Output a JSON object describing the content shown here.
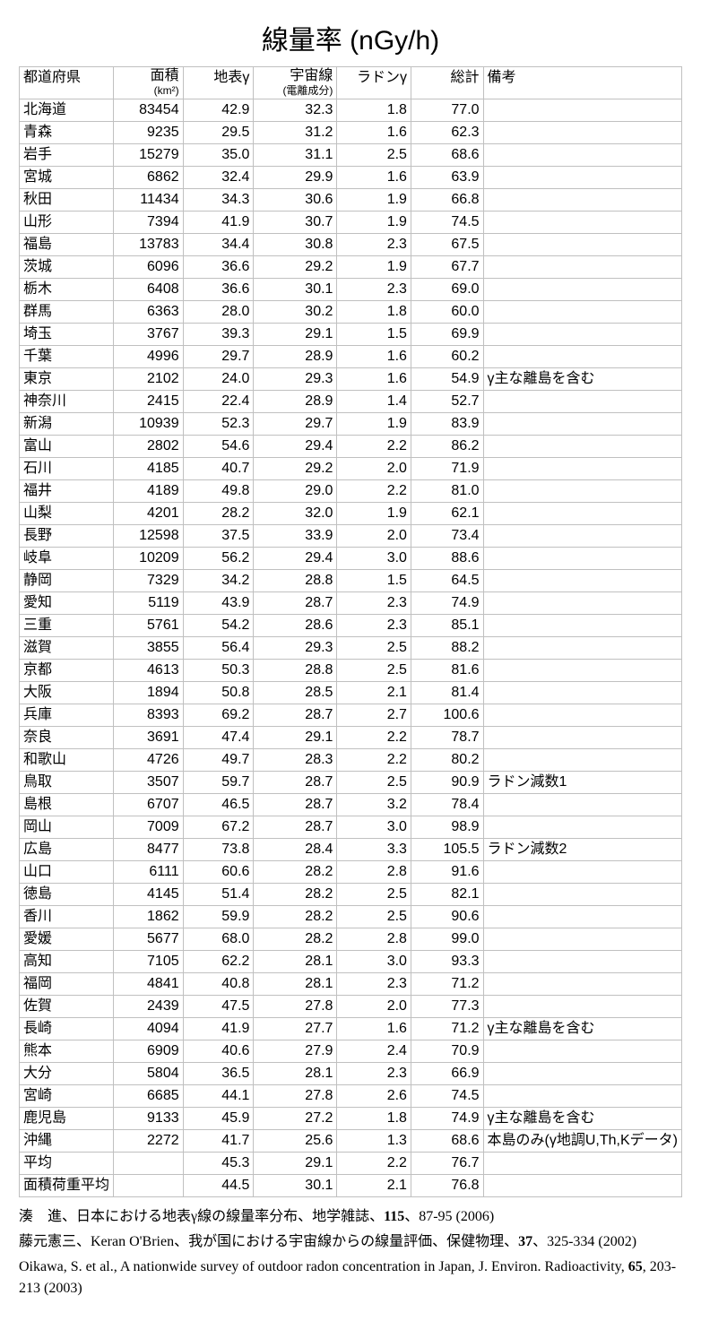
{
  "title": "線量率 (nGy/h)",
  "table": {
    "columns": [
      {
        "key": "pref",
        "label": "都道府県",
        "sublabel": "",
        "class": "col-pref"
      },
      {
        "key": "area",
        "label": "面積",
        "sublabel": "(km²)",
        "class": "col-area"
      },
      {
        "key": "gamma",
        "label": "地表γ",
        "sublabel": "",
        "class": "col-gamma"
      },
      {
        "key": "cosmic",
        "label": "宇宙線",
        "sublabel": "(電離成分)",
        "class": "col-cosmic"
      },
      {
        "key": "radon",
        "label": "ラドンγ",
        "sublabel": "",
        "class": "col-radon"
      },
      {
        "key": "total",
        "label": "総計",
        "sublabel": "",
        "class": "col-total"
      },
      {
        "key": "note",
        "label": "備考",
        "sublabel": "",
        "class": "col-note"
      }
    ],
    "rows": [
      {
        "pref": "北海道",
        "area": "83454",
        "gamma": "42.9",
        "cosmic": "32.3",
        "radon": "1.8",
        "total": "77.0",
        "note": ""
      },
      {
        "pref": "青森",
        "area": "9235",
        "gamma": "29.5",
        "cosmic": "31.2",
        "radon": "1.6",
        "total": "62.3",
        "note": ""
      },
      {
        "pref": "岩手",
        "area": "15279",
        "gamma": "35.0",
        "cosmic": "31.1",
        "radon": "2.5",
        "total": "68.6",
        "note": ""
      },
      {
        "pref": "宮城",
        "area": "6862",
        "gamma": "32.4",
        "cosmic": "29.9",
        "radon": "1.6",
        "total": "63.9",
        "note": ""
      },
      {
        "pref": "秋田",
        "area": "11434",
        "gamma": "34.3",
        "cosmic": "30.6",
        "radon": "1.9",
        "total": "66.8",
        "note": ""
      },
      {
        "pref": "山形",
        "area": "7394",
        "gamma": "41.9",
        "cosmic": "30.7",
        "radon": "1.9",
        "total": "74.5",
        "note": ""
      },
      {
        "pref": "福島",
        "area": "13783",
        "gamma": "34.4",
        "cosmic": "30.8",
        "radon": "2.3",
        "total": "67.5",
        "note": ""
      },
      {
        "pref": "茨城",
        "area": "6096",
        "gamma": "36.6",
        "cosmic": "29.2",
        "radon": "1.9",
        "total": "67.7",
        "note": ""
      },
      {
        "pref": "栃木",
        "area": "6408",
        "gamma": "36.6",
        "cosmic": "30.1",
        "radon": "2.3",
        "total": "69.0",
        "note": ""
      },
      {
        "pref": "群馬",
        "area": "6363",
        "gamma": "28.0",
        "cosmic": "30.2",
        "radon": "1.8",
        "total": "60.0",
        "note": ""
      },
      {
        "pref": "埼玉",
        "area": "3767",
        "gamma": "39.3",
        "cosmic": "29.1",
        "radon": "1.5",
        "total": "69.9",
        "note": ""
      },
      {
        "pref": "千葉",
        "area": "4996",
        "gamma": "29.7",
        "cosmic": "28.9",
        "radon": "1.6",
        "total": "60.2",
        "note": ""
      },
      {
        "pref": "東京",
        "area": "2102",
        "gamma": "24.0",
        "cosmic": "29.3",
        "radon": "1.6",
        "total": "54.9",
        "note": "γ主な離島を含む"
      },
      {
        "pref": "神奈川",
        "area": "2415",
        "gamma": "22.4",
        "cosmic": "28.9",
        "radon": "1.4",
        "total": "52.7",
        "note": ""
      },
      {
        "pref": "新潟",
        "area": "10939",
        "gamma": "52.3",
        "cosmic": "29.7",
        "radon": "1.9",
        "total": "83.9",
        "note": ""
      },
      {
        "pref": "富山",
        "area": "2802",
        "gamma": "54.6",
        "cosmic": "29.4",
        "radon": "2.2",
        "total": "86.2",
        "note": ""
      },
      {
        "pref": "石川",
        "area": "4185",
        "gamma": "40.7",
        "cosmic": "29.2",
        "radon": "2.0",
        "total": "71.9",
        "note": ""
      },
      {
        "pref": "福井",
        "area": "4189",
        "gamma": "49.8",
        "cosmic": "29.0",
        "radon": "2.2",
        "total": "81.0",
        "note": ""
      },
      {
        "pref": "山梨",
        "area": "4201",
        "gamma": "28.2",
        "cosmic": "32.0",
        "radon": "1.9",
        "total": "62.1",
        "note": ""
      },
      {
        "pref": "長野",
        "area": "12598",
        "gamma": "37.5",
        "cosmic": "33.9",
        "radon": "2.0",
        "total": "73.4",
        "note": ""
      },
      {
        "pref": "岐阜",
        "area": "10209",
        "gamma": "56.2",
        "cosmic": "29.4",
        "radon": "3.0",
        "total": "88.6",
        "note": ""
      },
      {
        "pref": "静岡",
        "area": "7329",
        "gamma": "34.2",
        "cosmic": "28.8",
        "radon": "1.5",
        "total": "64.5",
        "note": ""
      },
      {
        "pref": "愛知",
        "area": "5119",
        "gamma": "43.9",
        "cosmic": "28.7",
        "radon": "2.3",
        "total": "74.9",
        "note": ""
      },
      {
        "pref": "三重",
        "area": "5761",
        "gamma": "54.2",
        "cosmic": "28.6",
        "radon": "2.3",
        "total": "85.1",
        "note": ""
      },
      {
        "pref": "滋賀",
        "area": "3855",
        "gamma": "56.4",
        "cosmic": "29.3",
        "radon": "2.5",
        "total": "88.2",
        "note": ""
      },
      {
        "pref": "京都",
        "area": "4613",
        "gamma": "50.3",
        "cosmic": "28.8",
        "radon": "2.5",
        "total": "81.6",
        "note": ""
      },
      {
        "pref": "大阪",
        "area": "1894",
        "gamma": "50.8",
        "cosmic": "28.5",
        "radon": "2.1",
        "total": "81.4",
        "note": ""
      },
      {
        "pref": "兵庫",
        "area": "8393",
        "gamma": "69.2",
        "cosmic": "28.7",
        "radon": "2.7",
        "total": "100.6",
        "note": ""
      },
      {
        "pref": "奈良",
        "area": "3691",
        "gamma": "47.4",
        "cosmic": "29.1",
        "radon": "2.2",
        "total": "78.7",
        "note": ""
      },
      {
        "pref": "和歌山",
        "area": "4726",
        "gamma": "49.7",
        "cosmic": "28.3",
        "radon": "2.2",
        "total": "80.2",
        "note": ""
      },
      {
        "pref": "鳥取",
        "area": "3507",
        "gamma": "59.7",
        "cosmic": "28.7",
        "radon": "2.5",
        "total": "90.9",
        "note": "ラドン減数1"
      },
      {
        "pref": "島根",
        "area": "6707",
        "gamma": "46.5",
        "cosmic": "28.7",
        "radon": "3.2",
        "total": "78.4",
        "note": ""
      },
      {
        "pref": "岡山",
        "area": "7009",
        "gamma": "67.2",
        "cosmic": "28.7",
        "radon": "3.0",
        "total": "98.9",
        "note": ""
      },
      {
        "pref": "広島",
        "area": "8477",
        "gamma": "73.8",
        "cosmic": "28.4",
        "radon": "3.3",
        "total": "105.5",
        "note": "ラドン減数2"
      },
      {
        "pref": "山口",
        "area": "6111",
        "gamma": "60.6",
        "cosmic": "28.2",
        "radon": "2.8",
        "total": "91.6",
        "note": ""
      },
      {
        "pref": "徳島",
        "area": "4145",
        "gamma": "51.4",
        "cosmic": "28.2",
        "radon": "2.5",
        "total": "82.1",
        "note": ""
      },
      {
        "pref": "香川",
        "area": "1862",
        "gamma": "59.9",
        "cosmic": "28.2",
        "radon": "2.5",
        "total": "90.6",
        "note": ""
      },
      {
        "pref": "愛媛",
        "area": "5677",
        "gamma": "68.0",
        "cosmic": "28.2",
        "radon": "2.8",
        "total": "99.0",
        "note": ""
      },
      {
        "pref": "高知",
        "area": "7105",
        "gamma": "62.2",
        "cosmic": "28.1",
        "radon": "3.0",
        "total": "93.3",
        "note": ""
      },
      {
        "pref": "福岡",
        "area": "4841",
        "gamma": "40.8",
        "cosmic": "28.1",
        "radon": "2.3",
        "total": "71.2",
        "note": ""
      },
      {
        "pref": "佐賀",
        "area": "2439",
        "gamma": "47.5",
        "cosmic": "27.8",
        "radon": "2.0",
        "total": "77.3",
        "note": ""
      },
      {
        "pref": "長崎",
        "area": "4094",
        "gamma": "41.9",
        "cosmic": "27.7",
        "radon": "1.6",
        "total": "71.2",
        "note": "γ主な離島を含む"
      },
      {
        "pref": "熊本",
        "area": "6909",
        "gamma": "40.6",
        "cosmic": "27.9",
        "radon": "2.4",
        "total": "70.9",
        "note": ""
      },
      {
        "pref": "大分",
        "area": "5804",
        "gamma": "36.5",
        "cosmic": "28.1",
        "radon": "2.3",
        "total": "66.9",
        "note": ""
      },
      {
        "pref": "宮崎",
        "area": "6685",
        "gamma": "44.1",
        "cosmic": "27.8",
        "radon": "2.6",
        "total": "74.5",
        "note": ""
      },
      {
        "pref": "鹿児島",
        "area": "9133",
        "gamma": "45.9",
        "cosmic": "27.2",
        "radon": "1.8",
        "total": "74.9",
        "note": "γ主な離島を含む"
      },
      {
        "pref": "沖縄",
        "area": "2272",
        "gamma": "41.7",
        "cosmic": "25.6",
        "radon": "1.3",
        "total": "68.6",
        "note": "本島のみ(γ地調U,Th,Kデータ)"
      },
      {
        "pref": "平均",
        "area": "",
        "gamma": "45.3",
        "cosmic": "29.1",
        "radon": "2.2",
        "total": "76.7",
        "note": ""
      },
      {
        "pref": "面積荷重平均",
        "area": "",
        "gamma": "44.5",
        "cosmic": "30.1",
        "radon": "2.1",
        "total": "76.8",
        "note": ""
      }
    ]
  },
  "references": [
    {
      "text_parts": [
        "湊　進、日本における地表γ線の線量率分布、地学雑誌、",
        "115",
        "、87-95 (2006)"
      ],
      "bold_idx": 1
    },
    {
      "text_parts": [
        "藤元憲三、Keran O'Brien、我が国における宇宙線からの線量評価、保健物理、",
        "37",
        "、325-334 (2002)"
      ],
      "bold_idx": 1
    },
    {
      "text_parts": [
        "Oikawa, S. et al., A nationwide survey of outdoor radon concentration in Japan, J. Environ. Radioactivity, ",
        "65",
        ", 203-213 (2003)"
      ],
      "bold_idx": 1
    }
  ]
}
